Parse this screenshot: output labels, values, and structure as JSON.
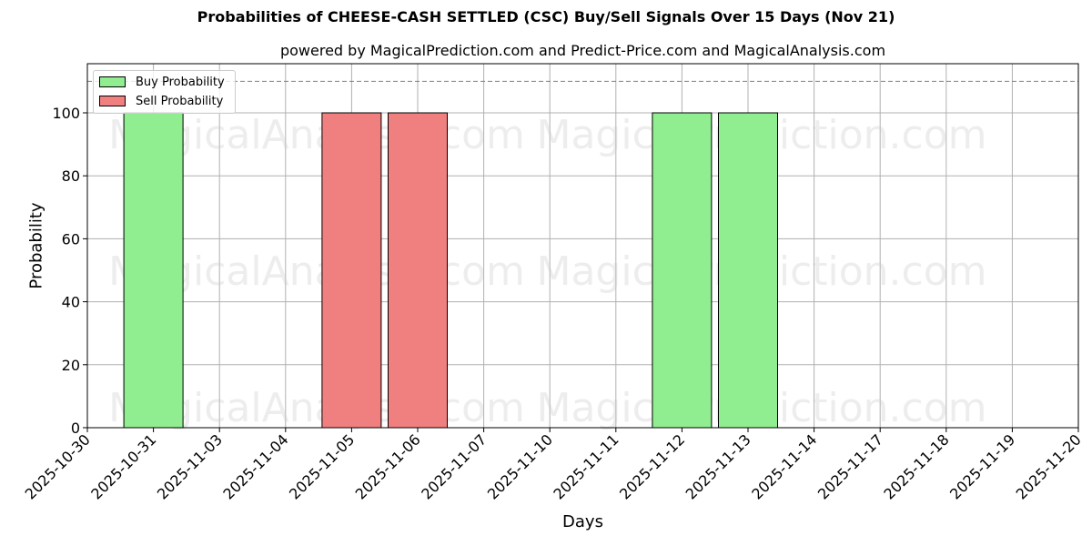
{
  "chart_data": {
    "type": "bar",
    "title": "Probabilities of CHEESE-CASH SETTLED (CSC) Buy/Sell Signals Over 15 Days (Nov 21)",
    "subtitle": "powered by MagicalPrediction.com and Predict-Price.com and MagicalAnalysis.com",
    "xlabel": "Days",
    "ylabel": "Probability",
    "ylim": [
      0,
      115
    ],
    "yticks": [
      0,
      20,
      40,
      60,
      80,
      100
    ],
    "xticks": [
      "2025-10-30",
      "2025-10-31",
      "2025-11-03",
      "2025-11-04",
      "2025-11-05",
      "2025-11-06",
      "2025-11-07",
      "2025-11-10",
      "2025-11-11",
      "2025-11-12",
      "2025-11-13",
      "2025-11-14",
      "2025-11-17",
      "2025-11-18",
      "2025-11-19",
      "2025-11-20"
    ],
    "categories": [
      "2025-10-31",
      "2025-11-05",
      "2025-11-06",
      "2025-11-12",
      "2025-11-13"
    ],
    "series": [
      {
        "name": "Buy Probability",
        "color": "#90ee90",
        "values": [
          100,
          0,
          0,
          100,
          100
        ]
      },
      {
        "name": "Sell Probability",
        "color": "#f08080",
        "values": [
          0,
          100,
          100,
          0,
          0
        ]
      }
    ],
    "reference_line": {
      "y": 110,
      "style": "dashed",
      "color": "#808080"
    },
    "grid": true,
    "legend_position": "upper left",
    "watermarks": [
      "MagicalAnalysis.com",
      "MagicalPrediction.com"
    ]
  },
  "legend": {
    "buy_label": "Buy Probability",
    "sell_label": "Sell Probability"
  }
}
